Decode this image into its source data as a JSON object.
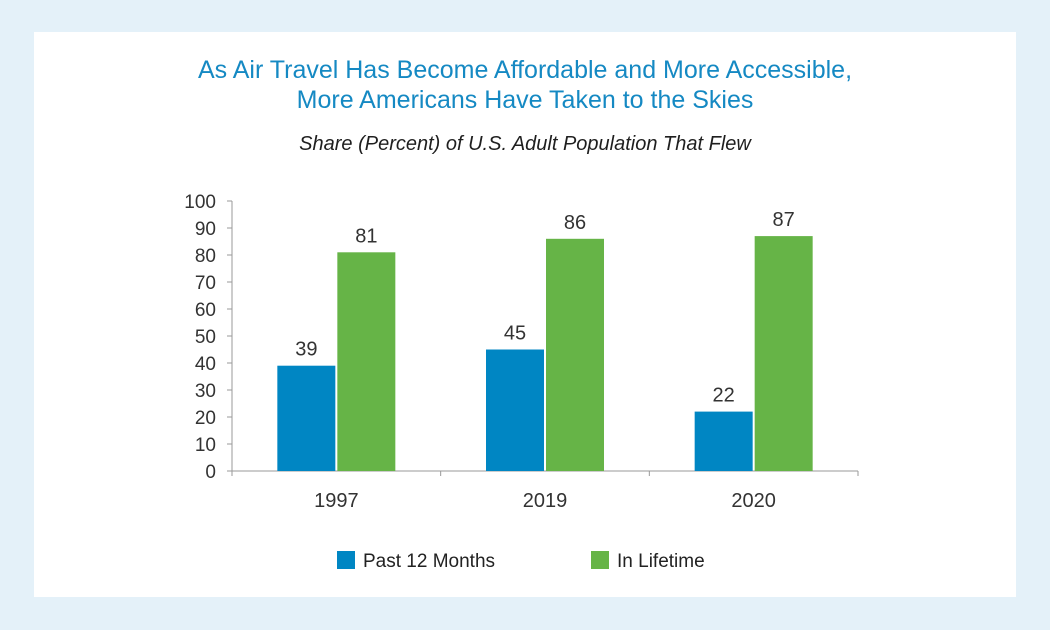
{
  "chart_data": {
    "type": "bar",
    "title_line1": "As Air Travel Has Become Affordable and More Accessible,",
    "title_line2": "More Americans Have Taken to the Skies",
    "subtitle": "Share (Percent) of U.S. Adult Population That Flew",
    "xlabel": "",
    "ylabel": "",
    "ylim": [
      0,
      100
    ],
    "yticks": [
      0,
      10,
      20,
      30,
      40,
      50,
      60,
      70,
      80,
      90,
      100
    ],
    "categories": [
      "1997",
      "2019",
      "2020"
    ],
    "series": [
      {
        "name": "Past 12 Months",
        "values": [
          39,
          45,
          22
        ],
        "color": "#0086c3"
      },
      {
        "name": "In Lifetime",
        "values": [
          81,
          86,
          87
        ],
        "color": "#66b447"
      }
    ],
    "legend_position": "bottom",
    "grid": false,
    "data_labels": true
  }
}
